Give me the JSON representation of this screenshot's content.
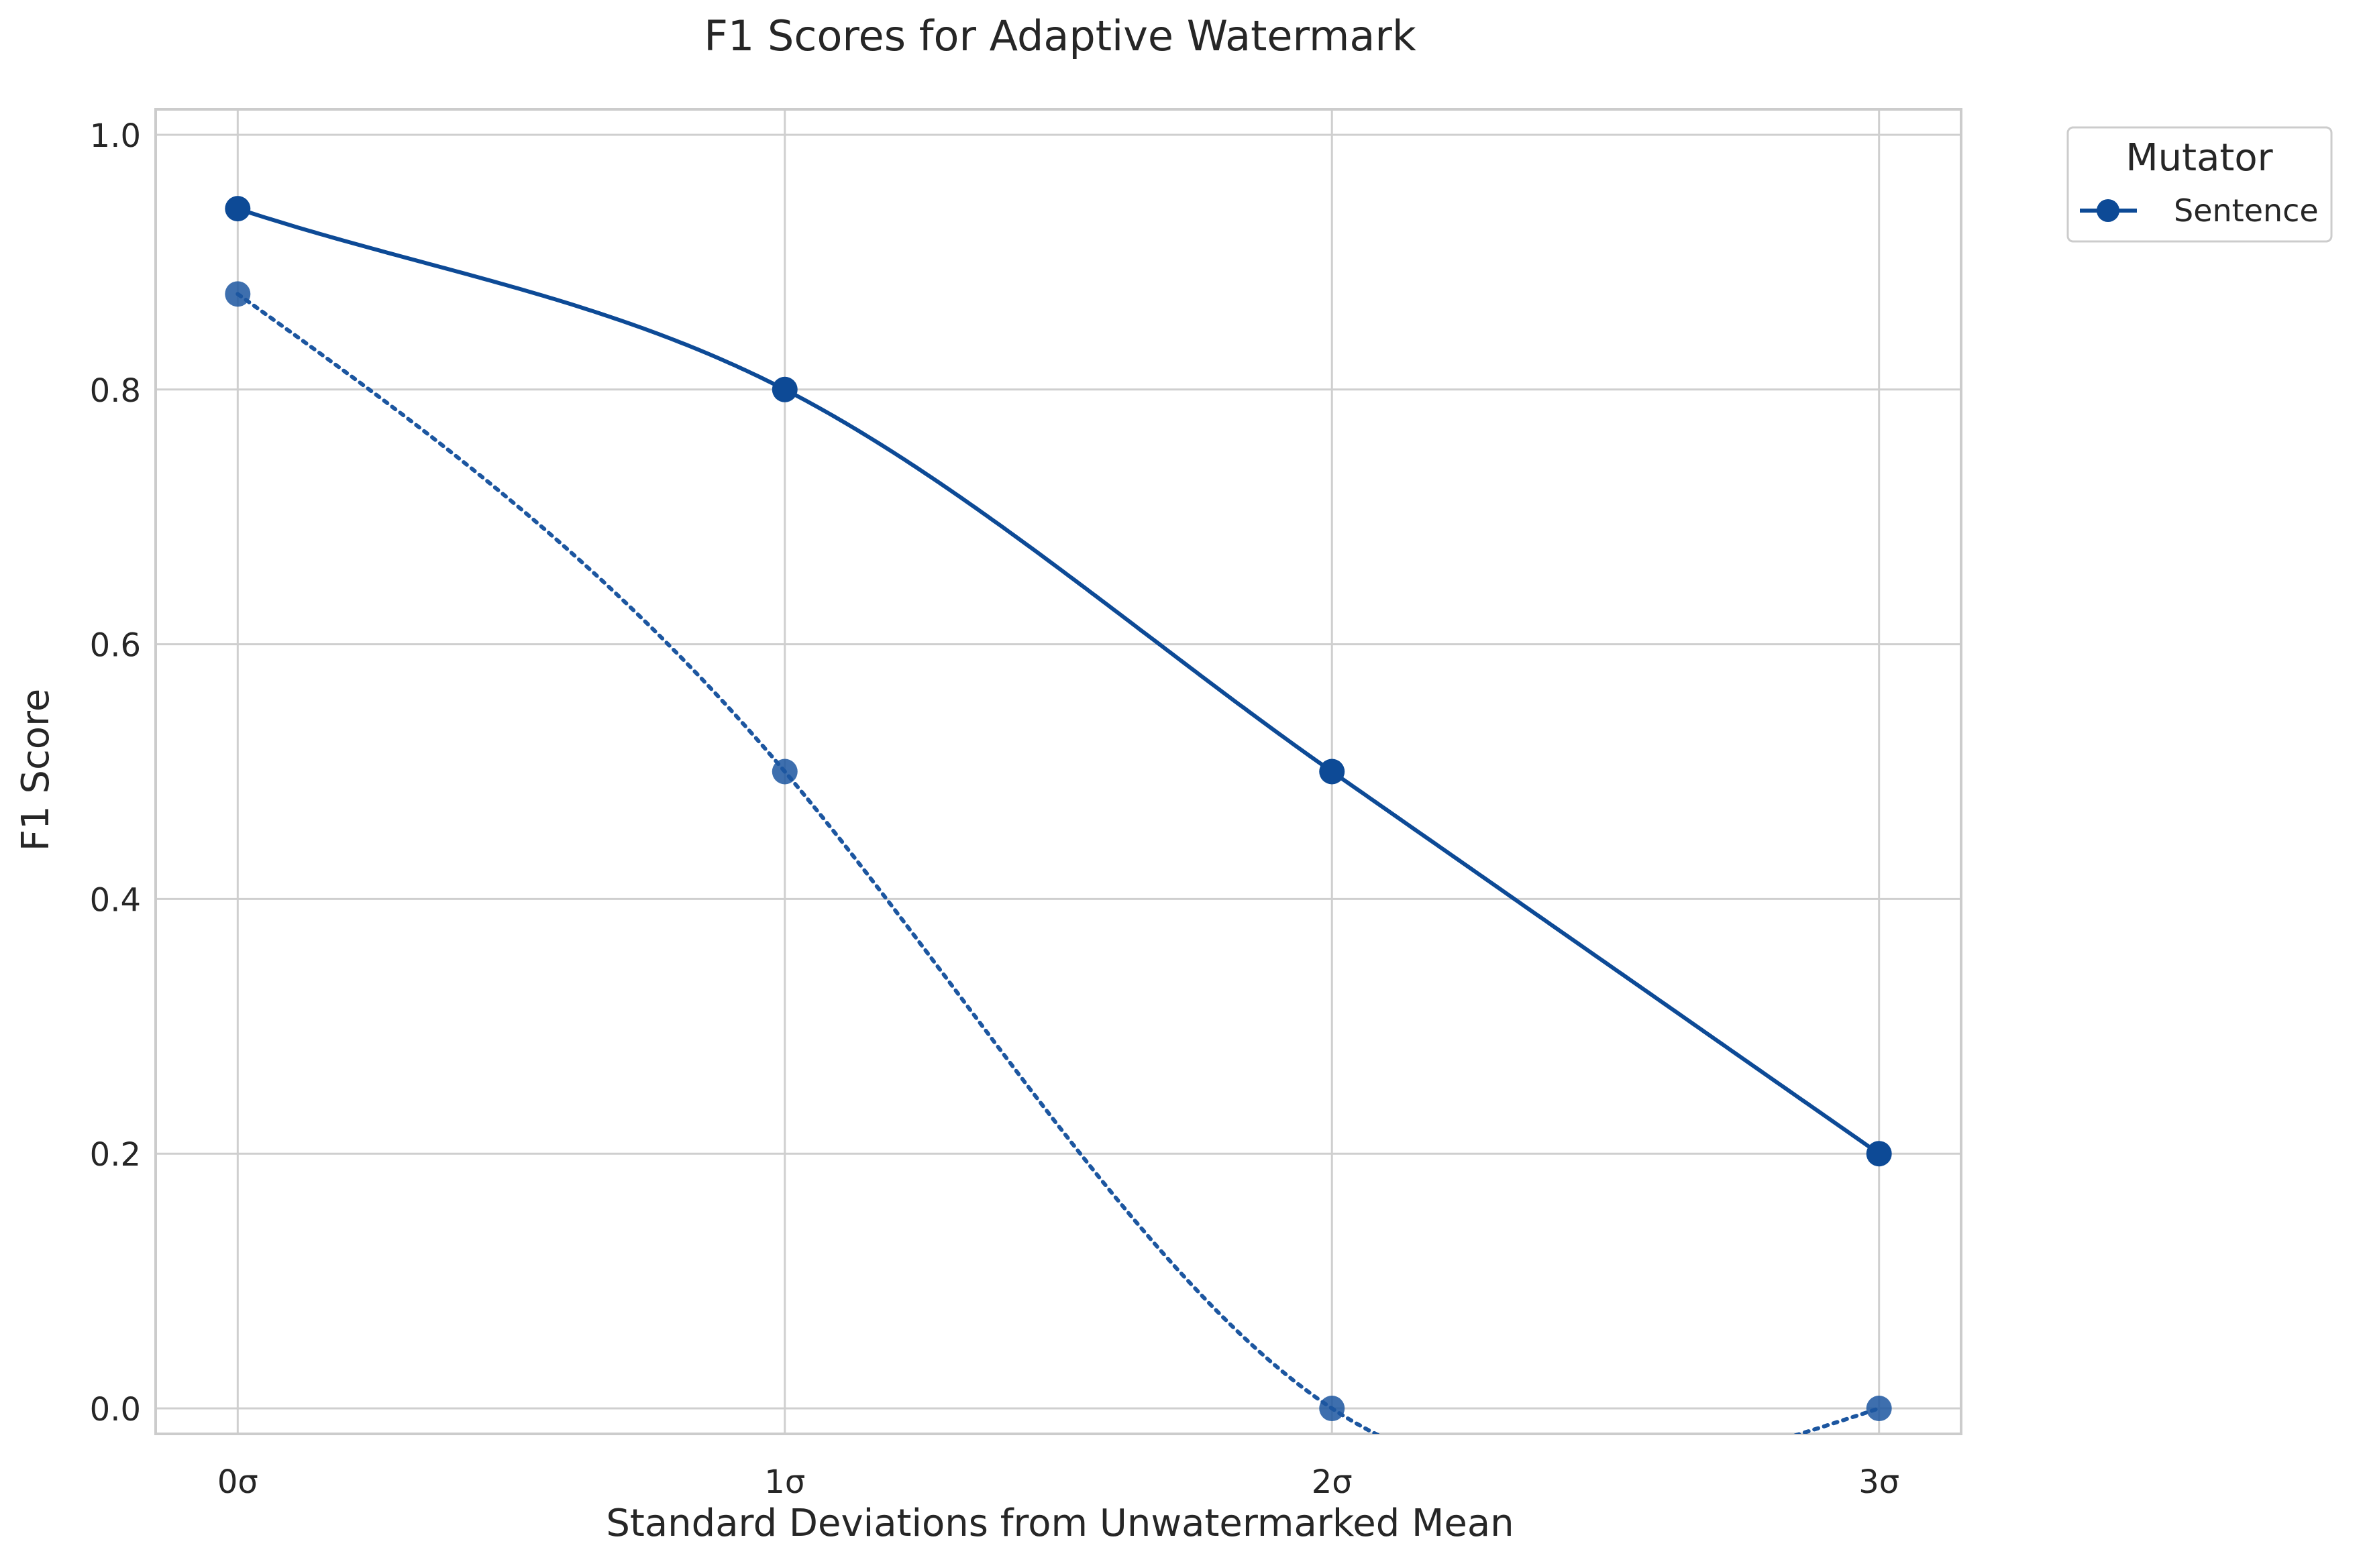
{
  "chart_data": {
    "type": "line",
    "title": "F1 Scores for Adaptive Watermark",
    "xlabel": "Standard Deviations from Unwatermarked Mean",
    "ylabel": "F1 Score",
    "categories": [
      "0σ",
      "1σ",
      "2σ",
      "3σ"
    ],
    "x": [
      0,
      1,
      2,
      3
    ],
    "yticks": [
      "0.0",
      "0.2",
      "0.4",
      "0.6",
      "0.8",
      "1.0"
    ],
    "ylim": [
      -0.02,
      1.02
    ],
    "xlim": [
      -0.15,
      3.15
    ],
    "grid": true,
    "series": [
      {
        "name": "Sentence",
        "values": [
          0.942,
          0.8,
          0.5,
          0.2
        ],
        "style": "solid",
        "color": "#0d4a96"
      },
      {
        "values": [
          0.875,
          0.5,
          0.0,
          0.0
        ],
        "style": "dotted",
        "color": "#1c56a0"
      }
    ],
    "legend": {
      "title": "Mutator",
      "entries": [
        "Sentence"
      ],
      "placement": "outside-top-right"
    }
  }
}
